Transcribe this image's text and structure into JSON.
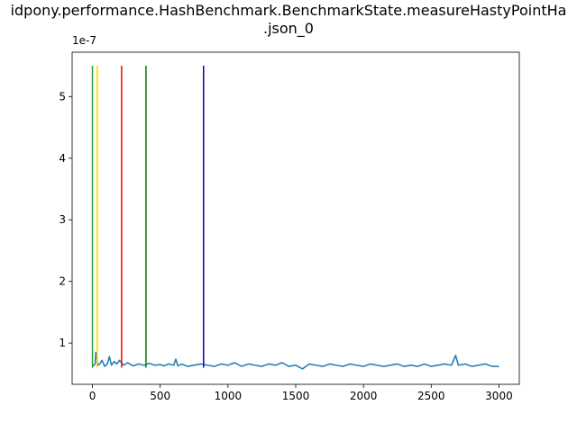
{
  "chart_data": {
    "type": "line",
    "title_lines": [
      "idpony.performance.HashBenchmark.BenchmarkState.measureHastyPointHa",
      ".json_0"
    ],
    "xlabel": "",
    "ylabel": "",
    "y_scale_label": "1e-7",
    "xlim": [
      -150,
      3150
    ],
    "ylim": [
      0.33,
      5.72
    ],
    "x_ticks": [
      0,
      500,
      1000,
      1500,
      2000,
      2500,
      3000
    ],
    "x_tick_labels": [
      "0",
      "500",
      "1000",
      "1500",
      "2000",
      "2500",
      "3000"
    ],
    "y_ticks": [
      1,
      2,
      3,
      4,
      5
    ],
    "y_tick_labels": [
      "1",
      "2",
      "3",
      "4",
      "5"
    ],
    "grid": false,
    "series": [
      {
        "color": "#1f77b4",
        "x": [
          0,
          20,
          25,
          40,
          55,
          70,
          90,
          110,
          125,
          140,
          160,
          180,
          200,
          230,
          260,
          300,
          340,
          380,
          420,
          460,
          500,
          530,
          560,
          600,
          615,
          630,
          660,
          700,
          750,
          800,
          850,
          900,
          950,
          1000,
          1050,
          1100,
          1150,
          1200,
          1250,
          1300,
          1350,
          1400,
          1450,
          1500,
          1550,
          1600,
          1650,
          1700,
          1750,
          1800,
          1850,
          1900,
          1950,
          2000,
          2050,
          2100,
          2150,
          2200,
          2250,
          2300,
          2350,
          2400,
          2450,
          2500,
          2550,
          2600,
          2650,
          2680,
          2700,
          2750,
          2800,
          2850,
          2900,
          2950,
          3000
        ],
        "values": [
          0.62,
          0.66,
          0.85,
          0.64,
          0.66,
          0.72,
          0.62,
          0.66,
          0.78,
          0.64,
          0.7,
          0.66,
          0.72,
          0.64,
          0.68,
          0.63,
          0.66,
          0.64,
          0.67,
          0.64,
          0.65,
          0.63,
          0.66,
          0.64,
          0.74,
          0.63,
          0.66,
          0.62,
          0.64,
          0.66,
          0.64,
          0.62,
          0.66,
          0.64,
          0.68,
          0.62,
          0.66,
          0.64,
          0.62,
          0.66,
          0.64,
          0.68,
          0.62,
          0.64,
          0.58,
          0.66,
          0.64,
          0.62,
          0.66,
          0.64,
          0.62,
          0.66,
          0.64,
          0.62,
          0.66,
          0.64,
          0.62,
          0.64,
          0.66,
          0.62,
          0.64,
          0.62,
          0.66,
          0.62,
          0.64,
          0.66,
          0.64,
          0.8,
          0.64,
          0.66,
          0.62,
          0.64,
          0.66,
          0.62,
          0.62
        ]
      }
    ],
    "vertical_lines": [
      {
        "x": 0,
        "color": "#2ca02c",
        "ymin": 0.6,
        "ymax": 5.5
      },
      {
        "x": 35,
        "color": "#ffd700",
        "ymin": 0.6,
        "ymax": 5.5
      },
      {
        "x": 215,
        "color": "#ff0000",
        "ymin": 0.6,
        "ymax": 5.5
      },
      {
        "x": 395,
        "color": "#008000",
        "ymin": 0.6,
        "ymax": 5.5
      },
      {
        "x": 820,
        "color": "#0000cc",
        "ymin": 0.6,
        "ymax": 5.5
      }
    ]
  }
}
